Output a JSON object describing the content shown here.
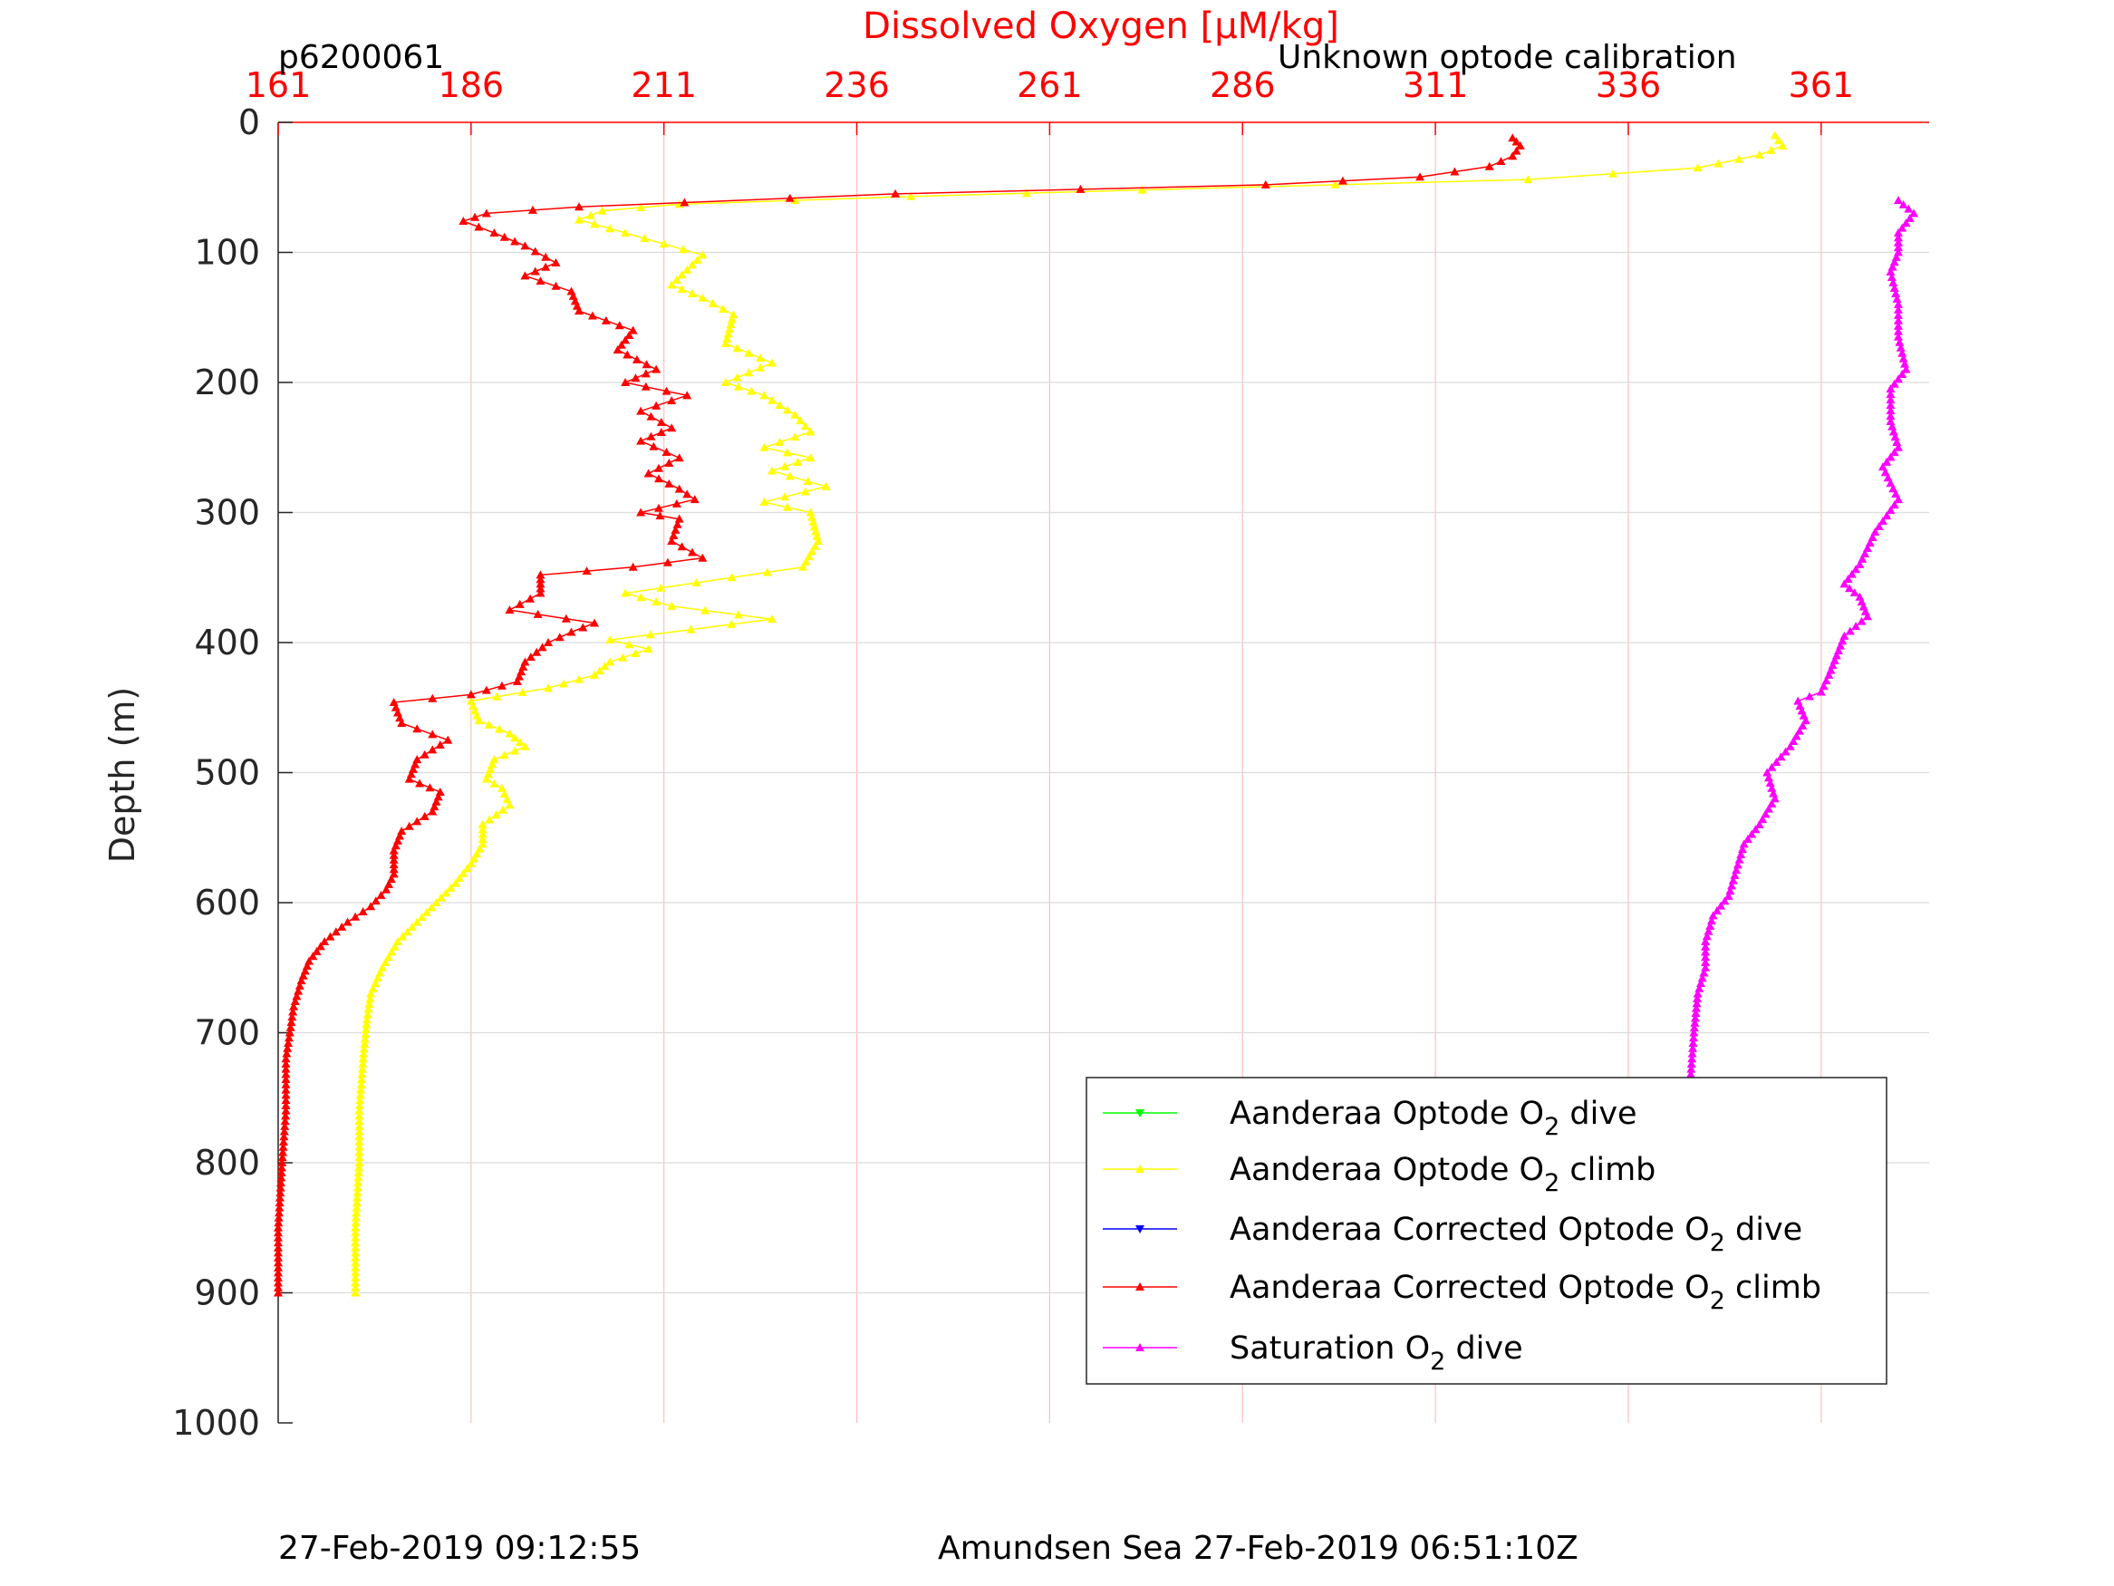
{
  "chart_data": {
    "type": "line",
    "x_axis": {
      "label": "Dissolved Oxygen [μM/kg]",
      "position": "top",
      "lim": [
        161,
        375
      ],
      "ticks": [
        161,
        186,
        211,
        236,
        261,
        286,
        311,
        336,
        361
      ],
      "color": "#ff0000"
    },
    "y_axis": {
      "label": "Depth (m)",
      "lim": [
        0,
        1000
      ],
      "reversed": true,
      "ticks": [
        0,
        100,
        200,
        300,
        400,
        500,
        600,
        700,
        800,
        900,
        1000
      ]
    },
    "grid": true,
    "legend_position": "bottom-right",
    "series": [
      {
        "name": "Aanderaa Optode O2 dive",
        "color": "#00ff00",
        "marker": "triangle-down",
        "points": []
      },
      {
        "name": "Aanderaa Optode O2 climb",
        "color": "#ffff00",
        "marker": "triangle-up",
        "points": [
          [
            171,
            900
          ],
          [
            171,
            850
          ],
          [
            171.5,
            800
          ],
          [
            171.5,
            760
          ],
          [
            172,
            720
          ],
          [
            172.5,
            690
          ],
          [
            173,
            670
          ],
          [
            174.5,
            650
          ],
          [
            176.5,
            630
          ],
          [
            179,
            615
          ],
          [
            181.5,
            600
          ],
          [
            184,
            585
          ],
          [
            186,
            570
          ],
          [
            187.5,
            555
          ],
          [
            187.5,
            540
          ],
          [
            191,
            525
          ],
          [
            190,
            512
          ],
          [
            188,
            505
          ],
          [
            189,
            490
          ],
          [
            193,
            480
          ],
          [
            191,
            470
          ],
          [
            187,
            460
          ],
          [
            186,
            445
          ],
          [
            196,
            435
          ],
          [
            202,
            425
          ],
          [
            204,
            415
          ],
          [
            209,
            405
          ],
          [
            204,
            398
          ],
          [
            225,
            382
          ],
          [
            212,
            372
          ],
          [
            206,
            362
          ],
          [
            229,
            342
          ],
          [
            231,
            322
          ],
          [
            230,
            300
          ],
          [
            224,
            292
          ],
          [
            232,
            280
          ],
          [
            225,
            268
          ],
          [
            230,
            258
          ],
          [
            224,
            250
          ],
          [
            230,
            238
          ],
          [
            228,
            225
          ],
          [
            224,
            210
          ],
          [
            219,
            200
          ],
          [
            225,
            185
          ],
          [
            219,
            170
          ],
          [
            220,
            148
          ],
          [
            216,
            135
          ],
          [
            212,
            125
          ],
          [
            216,
            102
          ],
          [
            206,
            85
          ],
          [
            200,
            75
          ],
          [
            203,
            68
          ],
          [
            213,
            63
          ],
          [
            243,
            57
          ],
          [
            273,
            52
          ],
          [
            323,
            44
          ],
          [
            345,
            35
          ],
          [
            353,
            25
          ],
          [
            356,
            18
          ],
          [
            355,
            10
          ]
        ]
      },
      {
        "name": "Aanderaa Corrected Optode O2 dive",
        "color": "#0000ff",
        "marker": "triangle-down",
        "points": []
      },
      {
        "name": "Aanderaa Corrected Optode O2 climb",
        "color": "#ff0000",
        "marker": "triangle-up",
        "points": [
          [
            161,
            900
          ],
          [
            161,
            850
          ],
          [
            161.5,
            800
          ],
          [
            162,
            760
          ],
          [
            162,
            720
          ],
          [
            163,
            680
          ],
          [
            164,
            660
          ],
          [
            165,
            645
          ],
          [
            167,
            630
          ],
          [
            170,
            615
          ],
          [
            173,
            603
          ],
          [
            175,
            590
          ],
          [
            176,
            578
          ],
          [
            176,
            560
          ],
          [
            177,
            545
          ],
          [
            181,
            530
          ],
          [
            182,
            515
          ],
          [
            178,
            505
          ],
          [
            179,
            490
          ],
          [
            183,
            475
          ],
          [
            177,
            462
          ],
          [
            176,
            446
          ],
          [
            186,
            440
          ],
          [
            192,
            430
          ],
          [
            193,
            415
          ],
          [
            196,
            400
          ],
          [
            199,
            392
          ],
          [
            202,
            385
          ],
          [
            191,
            375
          ],
          [
            195,
            362
          ],
          [
            195,
            348
          ],
          [
            207,
            342
          ],
          [
            216,
            335
          ],
          [
            212,
            322
          ],
          [
            213,
            305
          ],
          [
            208,
            300
          ],
          [
            215,
            290
          ],
          [
            213,
            282
          ],
          [
            209,
            270
          ],
          [
            213,
            258
          ],
          [
            208,
            245
          ],
          [
            212,
            235
          ],
          [
            208,
            222
          ],
          [
            214,
            210
          ],
          [
            206,
            200
          ],
          [
            210,
            190
          ],
          [
            205,
            175
          ],
          [
            207,
            160
          ],
          [
            200,
            145
          ],
          [
            199,
            130
          ],
          [
            193,
            118
          ],
          [
            197,
            108
          ],
          [
            193,
            95
          ],
          [
            189,
            85
          ],
          [
            185,
            76
          ],
          [
            188,
            70
          ],
          [
            200,
            65
          ],
          [
            241,
            55
          ],
          [
            289,
            48
          ],
          [
            309,
            42
          ],
          [
            318,
            34
          ],
          [
            321,
            26
          ],
          [
            322,
            18
          ],
          [
            321,
            12
          ]
        ]
      },
      {
        "name": "Saturation O2 dive",
        "color": "#ff00ff",
        "marker": "triangle-up",
        "points": [
          [
            371,
            60
          ],
          [
            373,
            70
          ],
          [
            371,
            85
          ],
          [
            371,
            100
          ],
          [
            370,
            115
          ],
          [
            371,
            140
          ],
          [
            371,
            165
          ],
          [
            372,
            190
          ],
          [
            370,
            205
          ],
          [
            370,
            230
          ],
          [
            371,
            250
          ],
          [
            369,
            265
          ],
          [
            371,
            290
          ],
          [
            368,
            315
          ],
          [
            366,
            340
          ],
          [
            364,
            355
          ],
          [
            366,
            365
          ],
          [
            367,
            380
          ],
          [
            364,
            395
          ],
          [
            363,
            410
          ],
          [
            362,
            425
          ],
          [
            361,
            438
          ],
          [
            358,
            445
          ],
          [
            359,
            460
          ],
          [
            357,
            480
          ],
          [
            354,
            500
          ],
          [
            355,
            520
          ],
          [
            353,
            540
          ],
          [
            351,
            555
          ],
          [
            350,
            575
          ],
          [
            349,
            595
          ],
          [
            347,
            610
          ],
          [
            346,
            630
          ],
          [
            346,
            650
          ],
          [
            345,
            670
          ],
          [
            344.5,
            700
          ],
          [
            344,
            740
          ],
          [
            344,
            800
          ],
          [
            343.5,
            860
          ],
          [
            343.5,
            900
          ]
        ]
      }
    ],
    "annotations": {
      "top_left": "p6200061",
      "top_right": "Unknown optode calibration",
      "bottom_left": "27-Feb-2019 09:12:55",
      "bottom_center": "Amundsen Sea 27-Feb-2019 06:51:10Z"
    }
  }
}
